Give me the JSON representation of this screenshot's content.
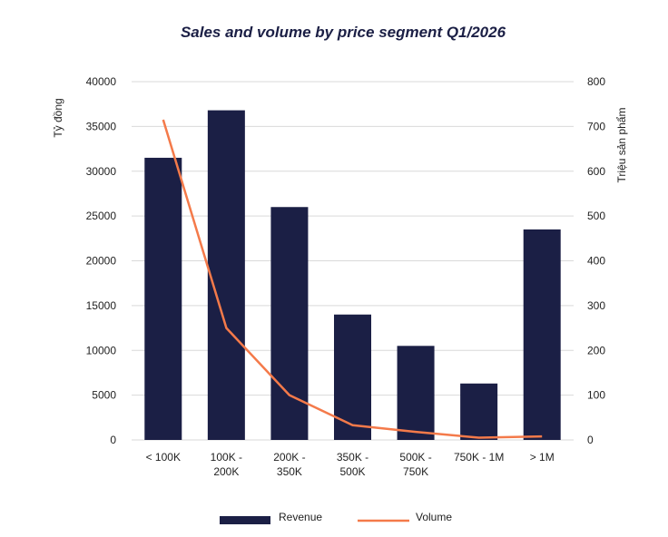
{
  "chart_data": {
    "type": "bar",
    "title": "Sales and volume by price segment Q1/2026",
    "categories": [
      [
        "< 100K"
      ],
      [
        "100K -",
        "200K"
      ],
      [
        "200K -",
        "350K"
      ],
      [
        "350K -",
        "500K"
      ],
      [
        "500K -",
        "750K"
      ],
      [
        "750K - 1M"
      ],
      [
        "> 1M"
      ]
    ],
    "series": [
      {
        "name": "Revenue",
        "type": "bar",
        "axis": "left",
        "color": "#1b1f45",
        "values": [
          31500,
          36800,
          26000,
          14000,
          10500,
          6300,
          23500
        ]
      },
      {
        "name": "Volume",
        "type": "line",
        "axis": "right",
        "color": "#f47a4a",
        "values": [
          715,
          250,
          100,
          33,
          18,
          5,
          8
        ]
      }
    ],
    "y_left": {
      "label": "Tỷ đồng",
      "min": 0,
      "max": 40000,
      "step": 5000
    },
    "y_right": {
      "label": "Triệu sản phẩm",
      "min": 0,
      "max": 800,
      "step": 100
    },
    "grid": true,
    "legend_position": "bottom"
  }
}
